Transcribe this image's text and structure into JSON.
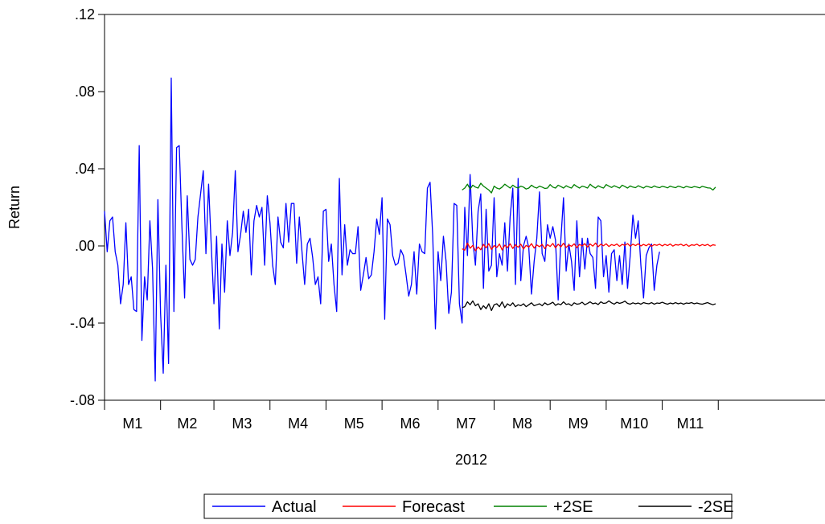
{
  "chart_data": {
    "type": "line",
    "ylabel": "Return",
    "xlabel": "2012",
    "ylim": [
      -0.08,
      0.12
    ],
    "y_ticks": [
      ".12",
      ".08",
      ".04",
      ".00",
      "-.04",
      "-.08"
    ],
    "y_tick_values": [
      0.12,
      0.08,
      0.04,
      0.0,
      -0.04,
      -0.08
    ],
    "x_month_labels": [
      "M1",
      "M2",
      "M3",
      "M4",
      "M5",
      "M6",
      "M7",
      "M8",
      "M9",
      "M10",
      "M11"
    ],
    "grid": false,
    "legend_position": "bottom-center",
    "x_range": [
      0,
      270
    ],
    "forecast_start_index": 134,
    "month_boundaries": [
      0,
      21,
      41,
      62,
      83,
      104,
      125,
      146,
      167,
      188,
      209,
      230
    ],
    "series": [
      {
        "name": "Actual",
        "color": "#0000ff",
        "values": [
          0.018,
          -0.003,
          0.013,
          0.015,
          -0.003,
          -0.01,
          -0.03,
          -0.02,
          0.012,
          -0.02,
          -0.016,
          -0.033,
          -0.034,
          0.052,
          -0.049,
          -0.016,
          -0.028,
          0.013,
          -0.012,
          -0.07,
          0.024,
          -0.035,
          -0.066,
          -0.01,
          -0.061,
          0.087,
          -0.034,
          0.051,
          0.052,
          0.01,
          -0.027,
          0.026,
          -0.007,
          -0.01,
          -0.007,
          0.015,
          0.027,
          0.039,
          -0.004,
          0.032,
          0.0,
          -0.03,
          0.005,
          -0.043,
          0.001,
          -0.024,
          0.013,
          -0.005,
          0.007,
          0.039,
          -0.003,
          0.006,
          0.018,
          0.007,
          0.019,
          -0.015,
          0.013,
          0.021,
          0.015,
          0.02,
          -0.01,
          0.026,
          0.012,
          -0.01,
          -0.02,
          0.015,
          0.002,
          -0.001,
          0.022,
          0.002,
          0.022,
          0.022,
          -0.009,
          0.015,
          -0.003,
          -0.02,
          0.001,
          0.004,
          -0.006,
          -0.02,
          -0.016,
          -0.03,
          0.018,
          0.019,
          -0.008,
          0.001,
          -0.02,
          -0.034,
          0.035,
          -0.015,
          0.011,
          -0.01,
          -0.002,
          -0.004,
          -0.004,
          0.01,
          -0.023,
          -0.015,
          -0.006,
          -0.017,
          -0.015,
          -0.003,
          0.014,
          0.006,
          0.025,
          -0.038,
          0.014,
          0.011,
          -0.005,
          -0.01,
          -0.009,
          -0.002,
          -0.005,
          -0.015,
          -0.026,
          -0.02,
          -0.003,
          -0.025,
          0.001,
          -0.003,
          -0.004,
          0.03,
          0.033,
          0.005,
          -0.043,
          -0.003,
          -0.018,
          0.005,
          -0.008,
          -0.035,
          -0.024,
          0.022,
          0.021,
          -0.03,
          -0.04,
          0.02,
          -0.005,
          0.037,
          0.003,
          -0.01,
          0.018,
          0.027,
          -0.022,
          0.019,
          -0.013,
          -0.01,
          0.025,
          -0.016,
          -0.004,
          -0.01,
          0.012,
          -0.013,
          0.015,
          0.03,
          -0.02,
          0.035,
          -0.018,
          0.0,
          0.005,
          -0.001,
          -0.025,
          -0.008,
          0.004,
          0.028,
          -0.004,
          -0.008,
          0.011,
          0.004,
          0.01,
          0.003,
          -0.028,
          0.003,
          0.025,
          -0.013,
          0.001,
          -0.008,
          -0.023,
          0.013,
          -0.016,
          0.004,
          -0.012,
          0.004,
          -0.004,
          -0.006,
          -0.022,
          0.015,
          0.013,
          -0.016,
          -0.005,
          -0.024,
          -0.004,
          -0.002,
          -0.018,
          -0.005,
          -0.02,
          0.002,
          -0.022,
          -0.005,
          0.016,
          0.004,
          0.013,
          -0.01,
          -0.027,
          -0.005,
          -0.001,
          0.001,
          -0.023,
          -0.01,
          -0.003
        ]
      },
      {
        "name": "Forecast",
        "color": "#ff0000",
        "values": [
          -0.0015,
          -0.0022,
          0.0015,
          -0.0012,
          0.0003,
          -0.0025,
          -0.0005,
          -0.002,
          0.0008,
          -0.001,
          0.0012,
          -0.0018,
          0.0002,
          -0.0008,
          0.001,
          -0.0021,
          0.0004,
          -0.0009,
          0.0011,
          -0.0013,
          0.0006,
          -0.0007,
          0.0009,
          -0.0016,
          0.0003,
          -0.0006,
          0.0012,
          -0.0011,
          0.0005,
          -0.0004,
          0.0008,
          -0.0014,
          0.0007,
          -0.0003,
          0.0013,
          -0.001,
          0.0009,
          -0.0005,
          0.0014,
          -0.0008,
          0.0006,
          -0.0002,
          0.0011,
          -0.0009,
          0.0008,
          0.0,
          0.0012,
          -0.0006,
          0.001,
          -0.0001,
          0.0015,
          -0.0004,
          0.0009,
          0.0001,
          0.0011,
          -0.0003,
          0.0007,
          0.0002,
          0.001,
          -0.0002,
          0.0008,
          0.0003,
          0.0012,
          -0.0001,
          0.0009,
          0.0002,
          0.0011,
          0.0,
          0.0008,
          0.0001,
          0.001,
          -0.0002,
          0.0007,
          0.0003,
          0.0009,
          0.0,
          0.0008,
          0.0002,
          0.001,
          -0.0001,
          0.0007,
          0.0004,
          0.0009,
          0.0001,
          0.0008,
          -0.0002,
          0.0006,
          0.0003,
          0.0009,
          0.0,
          0.0007,
          0.0002,
          0.0008,
          -0.0001,
          0.0006,
          0.0003
        ]
      },
      {
        "name": "+2SE",
        "color": "#008000",
        "values": [
          0.029,
          0.03,
          0.032,
          0.0295,
          0.0315,
          0.0305,
          0.03,
          0.0325,
          0.031,
          0.03,
          0.029,
          0.0275,
          0.031,
          0.03,
          0.0295,
          0.0305,
          0.032,
          0.031,
          0.03,
          0.0315,
          0.0305,
          0.03,
          0.031,
          0.0305,
          0.0295,
          0.03,
          0.0315,
          0.0305,
          0.03,
          0.031,
          0.0305,
          0.0298,
          0.03,
          0.0318,
          0.0305,
          0.03,
          0.0315,
          0.0308,
          0.03,
          0.0312,
          0.0305,
          0.03,
          0.0318,
          0.0308,
          0.03,
          0.031,
          0.0306,
          0.03,
          0.032,
          0.0308,
          0.03,
          0.0312,
          0.0305,
          0.03,
          0.0318,
          0.031,
          0.0303,
          0.0312,
          0.0306,
          0.03,
          0.0315,
          0.0308,
          0.03,
          0.0311,
          0.0305,
          0.0302,
          0.0312,
          0.0306,
          0.03,
          0.031,
          0.0306,
          0.0302,
          0.0311,
          0.0305,
          0.0302,
          0.0309,
          0.0306,
          0.0301,
          0.031,
          0.0305,
          0.0302,
          0.031,
          0.0306,
          0.0301,
          0.0309,
          0.0305,
          0.0302,
          0.0308,
          0.0305,
          0.0301,
          0.0309,
          0.0305,
          0.0301,
          0.03,
          0.029,
          0.0305
        ]
      },
      {
        "name": "-2SE",
        "color": "#000000",
        "values": [
          -0.032,
          -0.0315,
          -0.029,
          -0.0305,
          -0.0285,
          -0.031,
          -0.03,
          -0.033,
          -0.031,
          -0.0325,
          -0.03,
          -0.0335,
          -0.0305,
          -0.03,
          -0.0315,
          -0.029,
          -0.032,
          -0.03,
          -0.031,
          -0.0295,
          -0.0315,
          -0.0305,
          -0.031,
          -0.03,
          -0.0315,
          -0.0305,
          -0.0295,
          -0.031,
          -0.0305,
          -0.03,
          -0.031,
          -0.0295,
          -0.0305,
          -0.03,
          -0.0292,
          -0.0308,
          -0.03,
          -0.0305,
          -0.029,
          -0.0303,
          -0.03,
          -0.031,
          -0.0295,
          -0.0302,
          -0.03,
          -0.0292,
          -0.0305,
          -0.0298,
          -0.029,
          -0.03,
          -0.0296,
          -0.0304,
          -0.029,
          -0.0298,
          -0.0296,
          -0.0285,
          -0.0295,
          -0.0302,
          -0.0292,
          -0.0298,
          -0.0294,
          -0.0286,
          -0.0298,
          -0.0302,
          -0.0295,
          -0.03,
          -0.0296,
          -0.0302,
          -0.0294,
          -0.0298,
          -0.03,
          -0.0294,
          -0.0302,
          -0.0296,
          -0.0298,
          -0.0292,
          -0.0298,
          -0.0302,
          -0.0296,
          -0.03,
          -0.0294,
          -0.03,
          -0.0296,
          -0.0302,
          -0.0296,
          -0.0298,
          -0.0294,
          -0.03,
          -0.0296,
          -0.03,
          -0.0302,
          -0.0298,
          -0.0294,
          -0.03,
          -0.0305,
          -0.03
        ]
      }
    ]
  }
}
